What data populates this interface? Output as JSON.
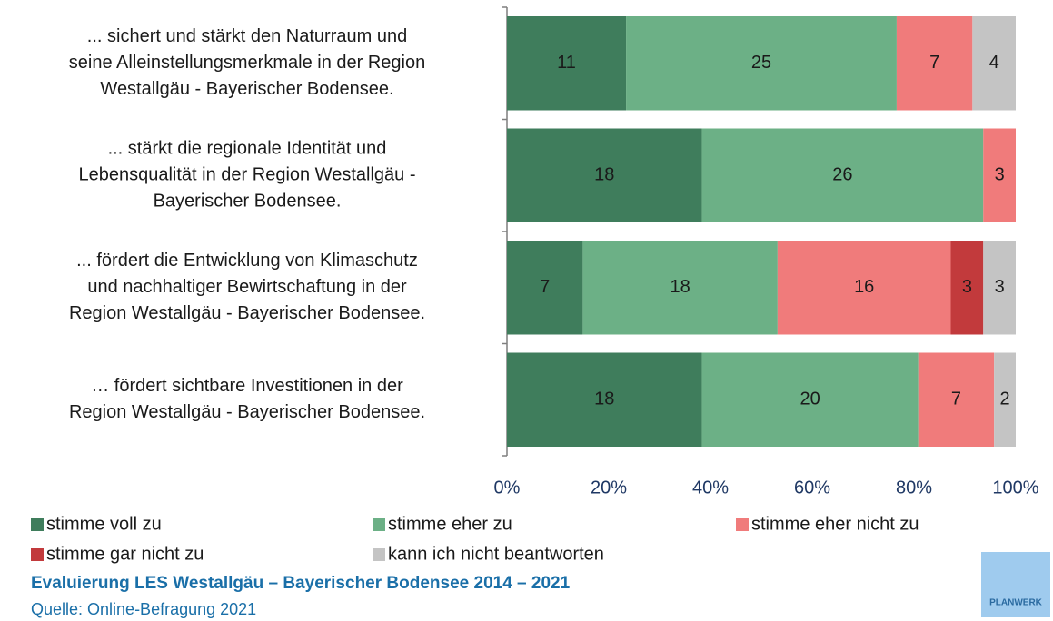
{
  "chart_data": {
    "type": "bar",
    "orientation": "horizontal",
    "stack": "percent",
    "categories": [
      [
        "... sichert und stärkt den Naturraum und",
        "seine Alleinstellungsmerkmale in der Region",
        "Westallgäu - Bayerischer Bodensee."
      ],
      [
        "... stärkt die regionale Identität und",
        "Lebensqualität in der Region Westallgäu -",
        "Bayerischer Bodensee."
      ],
      [
        "... fördert die Entwicklung von Klimaschutz",
        "und nachhaltiger Bewirtschaftung in der",
        "Region Westallgäu - Bayerischer Bodensee."
      ],
      [
        "… fördert sichtbare Investitionen in der",
        "Region Westallgäu - Bayerischer Bodensee."
      ]
    ],
    "series": [
      {
        "name": "stimme voll zu",
        "color": "#3f7d5c",
        "values": [
          11,
          18,
          7,
          18
        ]
      },
      {
        "name": "stimme eher zu",
        "color": "#6cb086",
        "values": [
          25,
          26,
          18,
          20
        ]
      },
      {
        "name": "stimme eher nicht zu",
        "color": "#f07b7b",
        "values": [
          7,
          3,
          16,
          7
        ]
      },
      {
        "name": "stimme gar nicht zu",
        "color": "#c23a3c",
        "values": [
          null,
          null,
          3,
          null
        ]
      },
      {
        "name": "kann ich nicht beantworten",
        "color": "#c4c4c4",
        "values": [
          4,
          null,
          3,
          2
        ]
      }
    ],
    "xlim": [
      0,
      100
    ],
    "xticks": [
      {
        "value": 0,
        "label": "0%"
      },
      {
        "value": 20,
        "label": "20%"
      },
      {
        "value": 40,
        "label": "40%"
      },
      {
        "value": 60,
        "label": "60%"
      },
      {
        "value": 80,
        "label": "80%"
      },
      {
        "value": 100,
        "label": "100%"
      }
    ],
    "legend": "bottom",
    "footer": {
      "title": "Evaluierung LES Westallgäu – Bayerischer Bodensee 2014 – 2021",
      "source": "Quelle: Online-Befragung 2021"
    },
    "logo": "PLANWERK"
  }
}
